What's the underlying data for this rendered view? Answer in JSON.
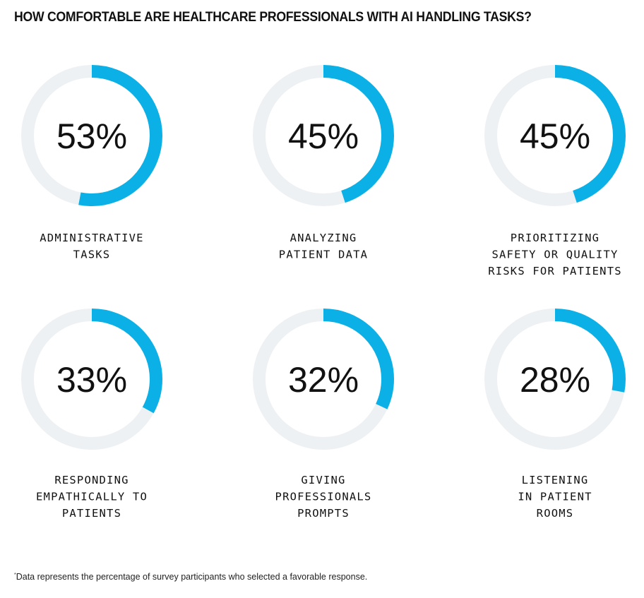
{
  "chart_data": {
    "type": "donut",
    "title": "HOW COMFORTABLE ARE HEALTHCARE PROFESSIONALS WITH AI HANDLING TASKS?",
    "unit": "%",
    "items": [
      {
        "value": 53,
        "label_lines": [
          "ADMINISTRATIVE",
          "TASKS"
        ]
      },
      {
        "value": 45,
        "label_lines": [
          "ANALYZING",
          "PATIENT DATA"
        ]
      },
      {
        "value": 45,
        "label_lines": [
          "PRIORITIZING",
          "SAFETY OR QUALITY",
          "RISKS FOR PATIENTS"
        ]
      },
      {
        "value": 33,
        "label_lines": [
          "RESPONDING",
          "EMPATHICALLY TO",
          "PATIENTS"
        ]
      },
      {
        "value": 32,
        "label_lines": [
          "GIVING",
          "PROFESSIONALS",
          "PROMPTS"
        ]
      },
      {
        "value": 28,
        "label_lines": [
          "LISTENING",
          "IN PATIENT",
          "ROOMS"
        ]
      }
    ],
    "colors": {
      "fill": "#0AB0E6",
      "track": "#EEF1F3"
    },
    "footnote_marker": "*",
    "footnote": "Data represents the percentage of survey participants who selected a favorable response."
  }
}
